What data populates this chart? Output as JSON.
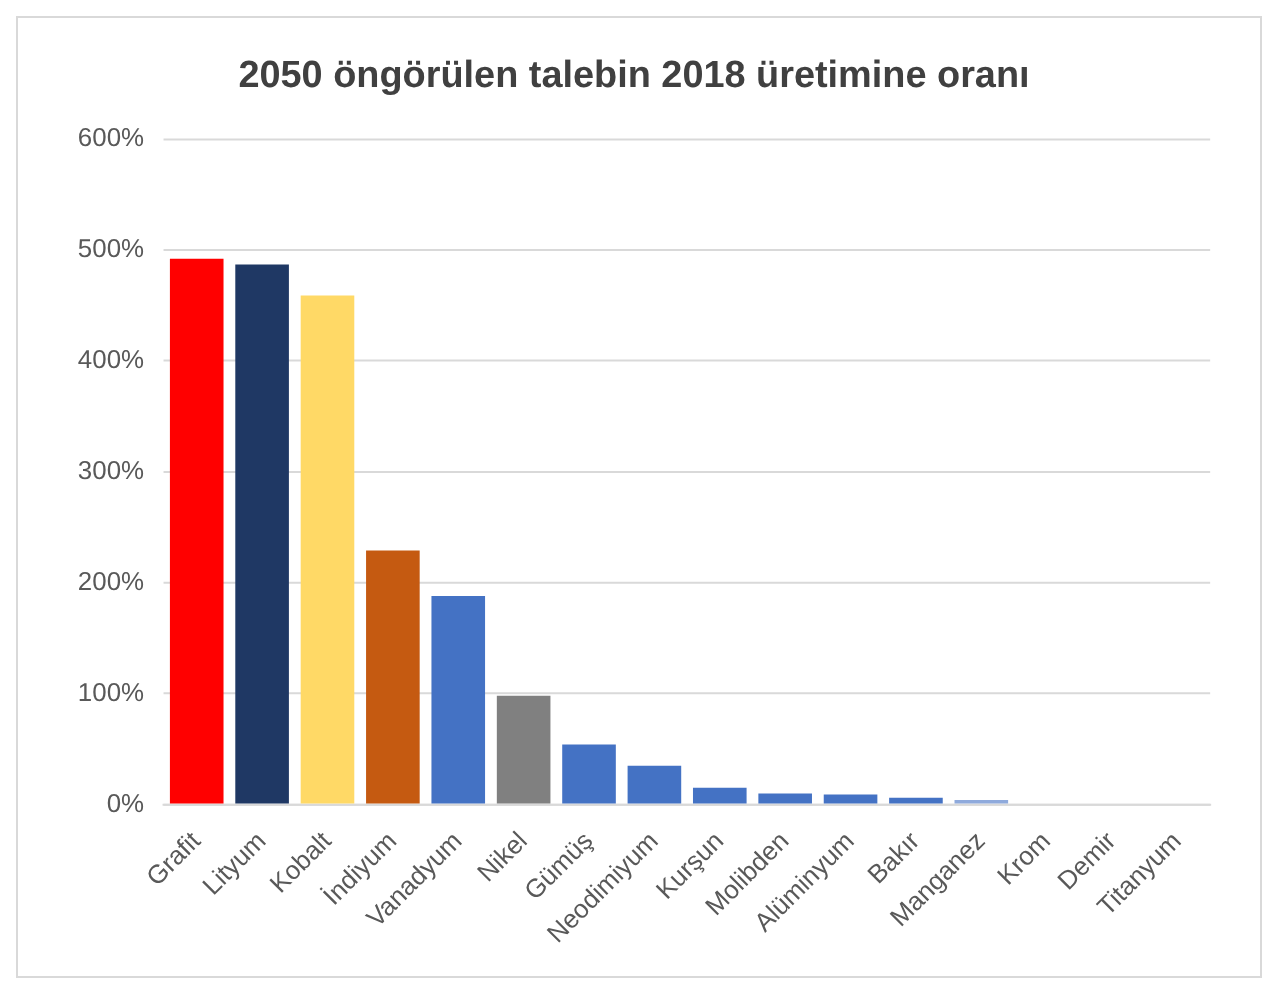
{
  "chart_data": {
    "type": "bar",
    "title": "2050 öngörülen talebin 2018 üretimine oranı",
    "categories": [
      "Grafit",
      "Lityum",
      "Kobalt",
      "İndiyum",
      "Vanadyum",
      "Nikel",
      "Gümüş",
      "Neodimiyum",
      "Kurşun",
      "Molibden",
      "Alüminyum",
      "Bakır",
      "Manganez",
      "Krom",
      "Demir",
      "Titanyum"
    ],
    "values": [
      492,
      487,
      459,
      229,
      188,
      98,
      54,
      35,
      15,
      10,
      9,
      6,
      4,
      0,
      0,
      0
    ],
    "colors": [
      "#ff0000",
      "#1f3864",
      "#ffd966",
      "#c55a11",
      "#4472c4",
      "#808080",
      "#4472c4",
      "#4472c4",
      "#4472c4",
      "#4472c4",
      "#4472c4",
      "#4472c4",
      "#8faadc",
      "#4472c4",
      "#4472c4",
      "#4472c4"
    ],
    "ylim": [
      0,
      600
    ],
    "yticks": [
      {
        "value": 0,
        "label": "0%"
      },
      {
        "value": 100,
        "label": "100%"
      },
      {
        "value": 200,
        "label": "200%"
      },
      {
        "value": 300,
        "label": "300%"
      },
      {
        "value": 400,
        "label": "400%"
      },
      {
        "value": 500,
        "label": "500%"
      },
      {
        "value": 600,
        "label": "600%"
      }
    ],
    "grid": "y",
    "legend": false
  }
}
